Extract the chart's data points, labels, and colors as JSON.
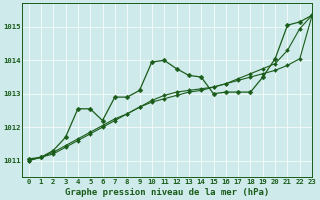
{
  "title": "Graphe pression niveau de la mer (hPa)",
  "background_color": "#ceeaea",
  "line_color": "#1a5c1a",
  "xlim": [
    -0.5,
    23
  ],
  "ylim": [
    1010.5,
    1015.7
  ],
  "yticks": [
    1011,
    1012,
    1013,
    1014,
    1015
  ],
  "xticks": [
    0,
    1,
    2,
    3,
    4,
    5,
    6,
    7,
    8,
    9,
    10,
    11,
    12,
    13,
    14,
    15,
    16,
    17,
    18,
    19,
    20,
    21,
    22,
    23
  ],
  "series": [
    {
      "x": [
        0,
        1,
        2,
        3,
        4,
        5,
        6,
        7,
        8,
        9,
        10,
        11,
        12,
        13,
        14,
        15,
        16,
        17,
        18,
        19,
        20,
        21,
        22,
        23
      ],
      "y": [
        1011.05,
        1011.1,
        1011.3,
        1011.7,
        1012.55,
        1012.55,
        1012.2,
        1012.9,
        1012.9,
        1013.1,
        1013.95,
        1014.0,
        1013.75,
        1013.55,
        1013.5,
        1013.0,
        1013.05,
        1013.05,
        1013.05,
        1013.5,
        1014.05,
        1015.05,
        1015.15,
        1015.35
      ],
      "marker": "D",
      "markersize": 2.5,
      "linewidth": 0.9
    },
    {
      "x": [
        0,
        1,
        2,
        3,
        4,
        5,
        6,
        7,
        8,
        9,
        10,
        11,
        12,
        13,
        14,
        15,
        16,
        17,
        18,
        19,
        20,
        21,
        22,
        23
      ],
      "y": [
        1011.0,
        1011.1,
        1011.25,
        1011.45,
        1011.65,
        1011.85,
        1012.05,
        1012.25,
        1012.4,
        1012.6,
        1012.75,
        1012.85,
        1012.95,
        1013.05,
        1013.1,
        1013.2,
        1013.3,
        1013.4,
        1013.5,
        1013.6,
        1013.7,
        1013.85,
        1014.05,
        1015.35
      ],
      "marker": "D",
      "markersize": 2.0,
      "linewidth": 0.8
    },
    {
      "x": [
        0,
        1,
        2,
        3,
        4,
        5,
        6,
        7,
        8,
        9,
        10,
        11,
        12,
        13,
        14,
        15,
        16,
        17,
        18,
        19,
        20,
        21,
        22,
        23
      ],
      "y": [
        1011.0,
        1011.1,
        1011.2,
        1011.4,
        1011.6,
        1011.8,
        1012.0,
        1012.2,
        1012.4,
        1012.6,
        1012.8,
        1012.95,
        1013.05,
        1013.1,
        1013.15,
        1013.2,
        1013.3,
        1013.45,
        1013.6,
        1013.75,
        1013.9,
        1014.3,
        1014.95,
        1015.35
      ],
      "marker": "D",
      "markersize": 2.0,
      "linewidth": 0.8
    }
  ]
}
